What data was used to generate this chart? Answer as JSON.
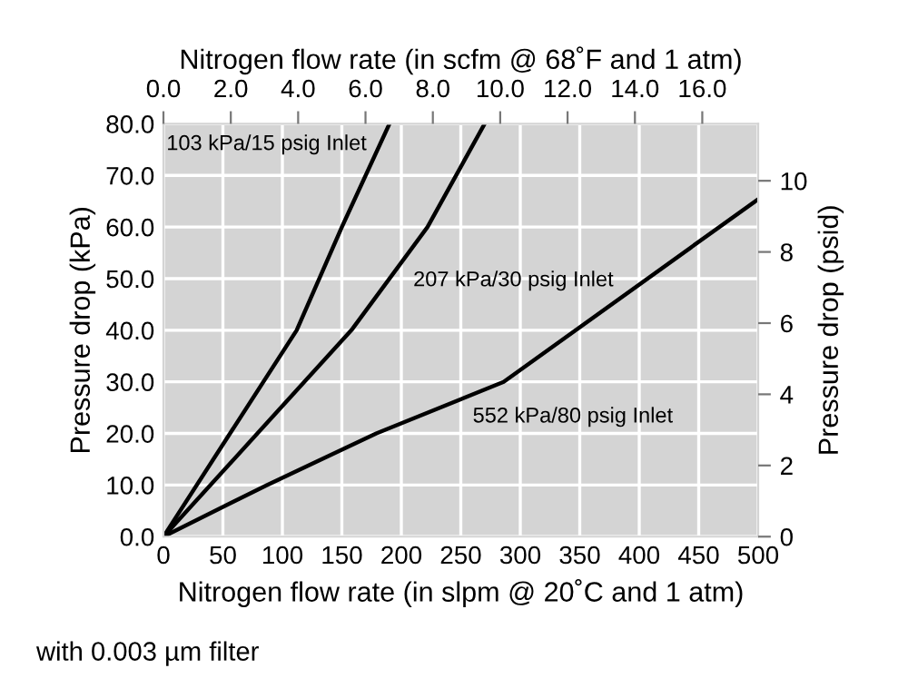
{
  "chart_data": {
    "type": "line",
    "xlabel": "Nitrogen flow rate (in slpm @ 20˚C and 1 atm)",
    "x2label": "Nitrogen flow rate (in scfm @ 68˚F and 1 atm)",
    "ylabel": "Pressure drop (kPa)",
    "y2label": "Pressure drop (psid)",
    "xlim": [
      0,
      500
    ],
    "xticks": [
      0,
      50,
      100,
      150,
      200,
      250,
      300,
      350,
      400,
      450,
      500
    ],
    "x2lim": [
      0,
      17.66
    ],
    "x2ticks": [
      {
        "value": 0,
        "label": "0.0"
      },
      {
        "value": 2,
        "label": "2.0"
      },
      {
        "value": 4,
        "label": "4.0"
      },
      {
        "value": 6,
        "label": "6.0"
      },
      {
        "value": 8,
        "label": "8.0"
      },
      {
        "value": 10,
        "label": "10.0"
      },
      {
        "value": 12,
        "label": "12.0"
      },
      {
        "value": 14,
        "label": "14.0"
      },
      {
        "value": 16,
        "label": "16.0"
      }
    ],
    "ylim": [
      0,
      80
    ],
    "yticks": [
      {
        "value": 0,
        "label": "0.0"
      },
      {
        "value": 10,
        "label": "10.0"
      },
      {
        "value": 20,
        "label": "20.0"
      },
      {
        "value": 30,
        "label": "30.0"
      },
      {
        "value": 40,
        "label": "40.0"
      },
      {
        "value": 50,
        "label": "50.0"
      },
      {
        "value": 60,
        "label": "60.0"
      },
      {
        "value": 70,
        "label": "70.0"
      },
      {
        "value": 80,
        "label": "80.0"
      }
    ],
    "y2lim": [
      0,
      11.6
    ],
    "y2ticks": [
      0,
      2,
      4,
      6,
      8,
      10
    ],
    "grid": true,
    "line_style": "solid",
    "marker": "none",
    "series": [
      {
        "name": "103 kPa/15 psig Inlet",
        "color": "#000000",
        "x": [
          0,
          56,
          112,
          150,
          190
        ],
        "values": [
          0,
          20,
          40,
          60,
          80
        ]
      },
      {
        "name": "207 kPa/30 psig Inlet",
        "color": "#000000",
        "x": [
          0,
          79,
          158,
          222,
          270
        ],
        "values": [
          0,
          20,
          40,
          60,
          80
        ]
      },
      {
        "name": "552 kPa/80 psig Inlet",
        "color": "#000000",
        "x": [
          0,
          87,
          179,
          286,
          500
        ],
        "values": [
          0,
          10,
          20,
          30,
          65.4
        ]
      }
    ],
    "annotations": [
      "with 0.003 µm filter"
    ]
  }
}
